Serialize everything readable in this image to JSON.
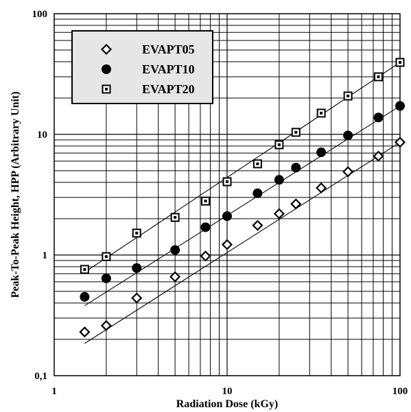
{
  "chart_data": {
    "type": "scatter",
    "title": "",
    "xlabel": "Radiation Dose (kGy)",
    "ylabel": "Peak-To-Peak Height, HPP (Arbitrary Unit)",
    "xscale": "log",
    "yscale": "log",
    "xlim": [
      1,
      100
    ],
    "ylim": [
      0.1,
      100
    ],
    "grid": true,
    "legend_position": "top-left",
    "x_ticks": [
      {
        "value": 1,
        "label": "1"
      },
      {
        "value": 10,
        "label": "10"
      },
      {
        "value": 100,
        "label": "100"
      }
    ],
    "y_ticks": [
      {
        "value": 0.1,
        "label": "0,1"
      },
      {
        "value": 1,
        "label": "1"
      },
      {
        "value": 10,
        "label": "10"
      },
      {
        "value": 100,
        "label": "100"
      }
    ],
    "fit_lines": true,
    "series": [
      {
        "name": "EVAPT05",
        "marker": "diamond-open",
        "points": [
          [
            1.5,
            0.23
          ],
          [
            2,
            0.26
          ],
          [
            3,
            0.44
          ],
          [
            5,
            0.66
          ],
          [
            7.5,
            0.98
          ],
          [
            10,
            1.22
          ],
          [
            15,
            1.76
          ],
          [
            20,
            2.2
          ],
          [
            25,
            2.65
          ],
          [
            35,
            3.6
          ],
          [
            50,
            4.9
          ],
          [
            75,
            6.6
          ],
          [
            100,
            8.6
          ]
        ],
        "fit": [
          [
            1.5,
            0.185
          ],
          [
            100,
            8.6
          ]
        ]
      },
      {
        "name": "EVAPT10",
        "marker": "circle-filled",
        "points": [
          [
            1.5,
            0.45
          ],
          [
            2,
            0.64
          ],
          [
            3,
            0.78
          ],
          [
            5,
            1.1
          ],
          [
            7.5,
            1.7
          ],
          [
            10,
            2.1
          ],
          [
            15,
            3.25
          ],
          [
            20,
            4.2
          ],
          [
            25,
            5.3
          ],
          [
            35,
            7.1
          ],
          [
            50,
            9.8
          ],
          [
            75,
            13.8
          ],
          [
            100,
            17.2
          ]
        ],
        "fit": [
          [
            1.5,
            0.38
          ],
          [
            100,
            17.2
          ]
        ]
      },
      {
        "name": "EVAPT20",
        "marker": "square-open",
        "points": [
          [
            1.5,
            0.76
          ],
          [
            2,
            0.97
          ],
          [
            3,
            1.52
          ],
          [
            5,
            2.05
          ],
          [
            7.5,
            2.8
          ],
          [
            10,
            4.05
          ],
          [
            15,
            5.7
          ],
          [
            20,
            8.2
          ],
          [
            25,
            10.4
          ],
          [
            35,
            15
          ],
          [
            50,
            20.8
          ],
          [
            75,
            30
          ],
          [
            100,
            39.5
          ]
        ],
        "fit": [
          [
            1.5,
            0.72
          ],
          [
            100,
            39.5
          ]
        ]
      }
    ]
  }
}
